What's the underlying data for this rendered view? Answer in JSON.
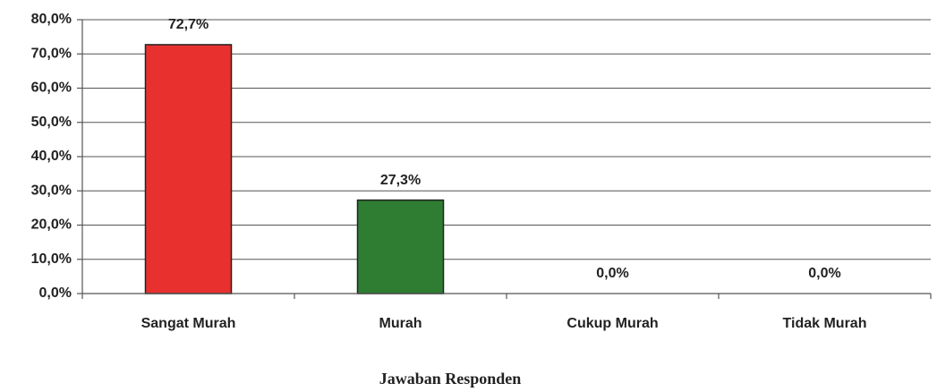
{
  "chart_data": {
    "type": "bar",
    "x_label": "Jawaban Responden",
    "categories": [
      "Sangat Murah",
      "Murah",
      "Cukup Murah",
      "Tidak Murah"
    ],
    "values": [
      72.7,
      27.3,
      0,
      0
    ],
    "value_labels": [
      "72,7%",
      "27,3%",
      "0,0%",
      "0,0%"
    ],
    "colors": [
      "#e8312f",
      "#2e7d32",
      "#4472c4",
      "#7f7f7f"
    ],
    "ylim": [
      0,
      80
    ],
    "yticks": [
      {
        "value": 0,
        "label": "0,0%"
      },
      {
        "value": 10,
        "label": "10,0%"
      },
      {
        "value": 20,
        "label": "20,0%"
      },
      {
        "value": 30,
        "label": "30,0%"
      },
      {
        "value": 40,
        "label": "40,0%"
      },
      {
        "value": 50,
        "label": "50,0%"
      },
      {
        "value": 60,
        "label": "60,0%"
      },
      {
        "value": 70,
        "label": "70,0%"
      },
      {
        "value": 80,
        "label": "80,0%"
      }
    ],
    "grid": true
  }
}
